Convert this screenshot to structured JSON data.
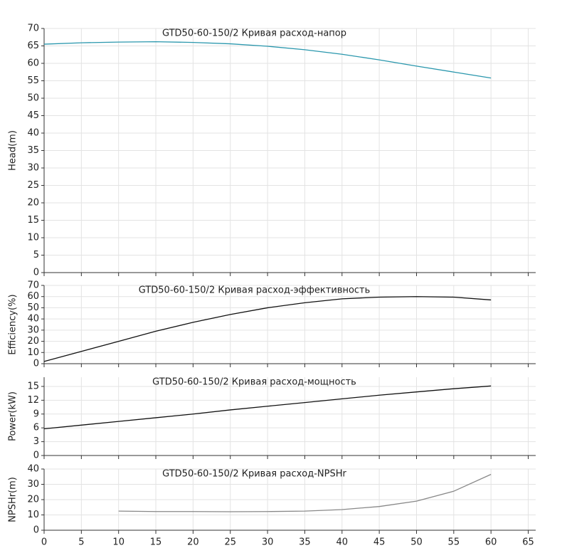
{
  "chart_data": [
    {
      "type": "line",
      "title": "GTD50-60-150/2 Кривая расход-напор",
      "y_label": "Head(m)",
      "x": [
        0,
        5,
        10,
        15,
        20,
        25,
        30,
        35,
        40,
        45,
        50,
        55,
        60
      ],
      "series": [
        {
          "color": "#2a97ad",
          "values": [
            65.5,
            65.9,
            66.1,
            66.2,
            66.0,
            65.6,
            64.9,
            63.9,
            62.6,
            61.0,
            59.2,
            57.5,
            55.8
          ]
        }
      ],
      "xlim": [
        0,
        66
      ],
      "ylim": [
        0,
        70
      ],
      "yticks": [
        0,
        5,
        10,
        15,
        20,
        25,
        30,
        35,
        40,
        45,
        50,
        55,
        60,
        65,
        70
      ],
      "grid": true
    },
    {
      "type": "line",
      "title": "GTD50-60-150/2 Кривая расход-эффективность",
      "y_label": "Efficiency(%)",
      "x": [
        0,
        5,
        10,
        15,
        20,
        25,
        30,
        35,
        40,
        45,
        50,
        55,
        60
      ],
      "series": [
        {
          "color": "#111111",
          "values": [
            2,
            11,
            20,
            29,
            37,
            44,
            50,
            54.5,
            58,
            59.5,
            60,
            59.5,
            57
          ]
        }
      ],
      "xlim": [
        0,
        66
      ],
      "ylim": [
        0,
        70
      ],
      "yticks": [
        0,
        10,
        20,
        30,
        40,
        50,
        60,
        70
      ],
      "grid": true
    },
    {
      "type": "line",
      "title": "GTD50-60-150/2 Кривая расход-мощность",
      "y_label": "Power(kW)",
      "x": [
        0,
        5,
        10,
        15,
        20,
        25,
        30,
        35,
        40,
        45,
        50,
        55,
        60
      ],
      "series": [
        {
          "color": "#111111",
          "values": [
            5.8,
            6.6,
            7.4,
            8.2,
            9.0,
            9.9,
            10.7,
            11.5,
            12.3,
            13.1,
            13.8,
            14.5,
            15.1
          ]
        }
      ],
      "xlim": [
        0,
        66
      ],
      "ylim": [
        0,
        17
      ],
      "yticks": [
        0,
        3,
        6,
        9,
        12,
        15
      ],
      "grid": true
    },
    {
      "type": "line",
      "title": "GTD50-60-150/2 Кривая расход-NPSHr",
      "y_label": "NPSHr(m)",
      "x": [
        10,
        15,
        20,
        25,
        30,
        35,
        40,
        45,
        50,
        55,
        60
      ],
      "series": [
        {
          "color": "#888888",
          "values": [
            12.5,
            12.2,
            12.2,
            12.1,
            12.2,
            12.5,
            13.5,
            15.5,
            19,
            25.5,
            36.5
          ]
        }
      ],
      "xlim": [
        0,
        66
      ],
      "ylim": [
        0,
        40
      ],
      "yticks": [
        0,
        10,
        20,
        30,
        40
      ],
      "xticks": [
        0,
        5,
        10,
        15,
        20,
        25,
        30,
        35,
        40,
        45,
        50,
        55,
        60,
        65
      ],
      "grid": true
    }
  ]
}
